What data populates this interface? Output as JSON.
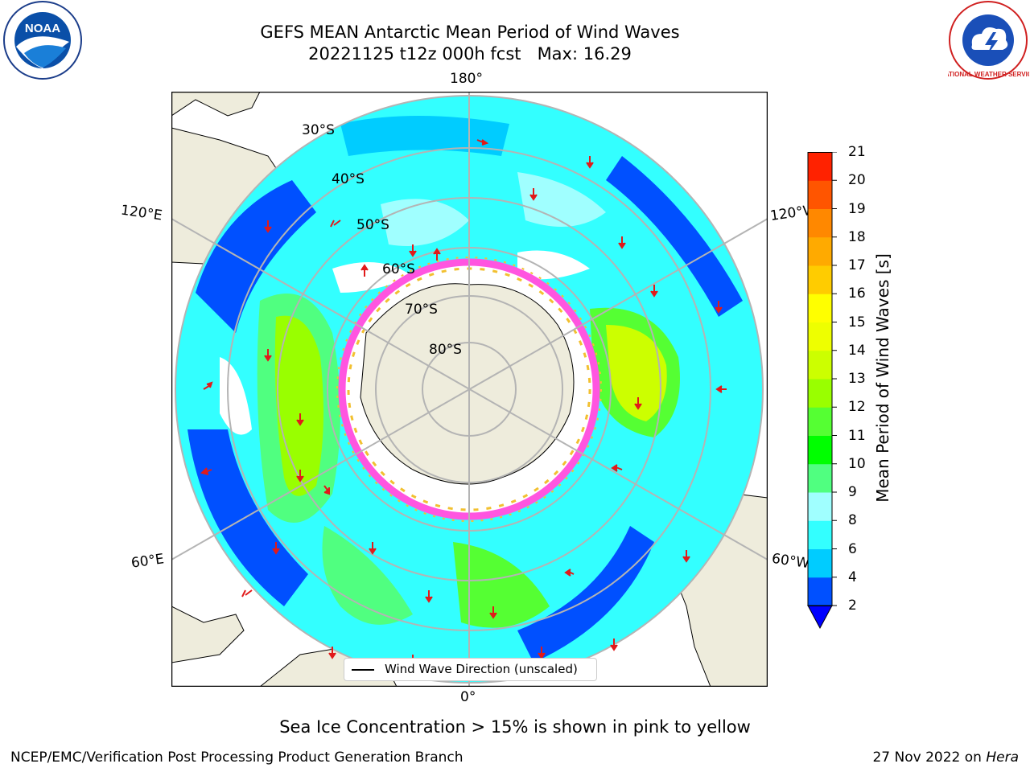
{
  "header": {
    "title": "GEFS MEAN Antarctic Mean Period of Wind Waves",
    "subtitle_run": "20221125 t12z 000h fcst",
    "subtitle_max": "Max: 16.29"
  },
  "logos": {
    "left": "noaa-logo",
    "left_text": "NOAA",
    "right": "nws-logo",
    "right_text": "NATIONAL WEATHER SERVICE"
  },
  "map": {
    "projection": "south-polar-stereographic",
    "longitude_labels": {
      "top": "180°",
      "bottom": "0°",
      "upper_left": "120°E",
      "upper_right": "120°W",
      "lower_left": "60°E",
      "lower_right": "60°W"
    },
    "latitude_labels": [
      "30°S",
      "40°S",
      "50°S",
      "60°S",
      "70°S",
      "80°S"
    ],
    "colors": {
      "land": "#eeecdc",
      "ocean_missing": "#ffffff",
      "grid": "#b4b4b4",
      "arrow": "#e11a1a",
      "sea_ice_pink": "#ff55e0",
      "sea_ice_yellow": "#f2c030"
    }
  },
  "legend": {
    "label": "Wind Wave Direction (unscaled)"
  },
  "colorbar": {
    "label": "Mean Period of Wind Waves [s]",
    "ticks": [
      "2",
      "4",
      "6",
      "8",
      "9",
      "10",
      "11",
      "12",
      "13",
      "14",
      "15",
      "16",
      "17",
      "18",
      "19",
      "20",
      "21"
    ],
    "colors": [
      "#0050ff",
      "#00ccff",
      "#33ffff",
      "#a0ffff",
      "#50ff80",
      "#00ff00",
      "#55ff33",
      "#99ff00",
      "#ccff00",
      "#eeff00",
      "#ffff00",
      "#ffcc00",
      "#ffaa00",
      "#ff8800",
      "#ff5500",
      "#ff2200"
    ],
    "extend_color": "#0000ff"
  },
  "footer": {
    "note": "Sea Ice Concentration > 15% is shown in pink to yellow",
    "credit": "NCEP/EMC/Verification Post Processing Product Generation Branch",
    "date": "27 Nov 2022 on",
    "machine": "Hera"
  }
}
